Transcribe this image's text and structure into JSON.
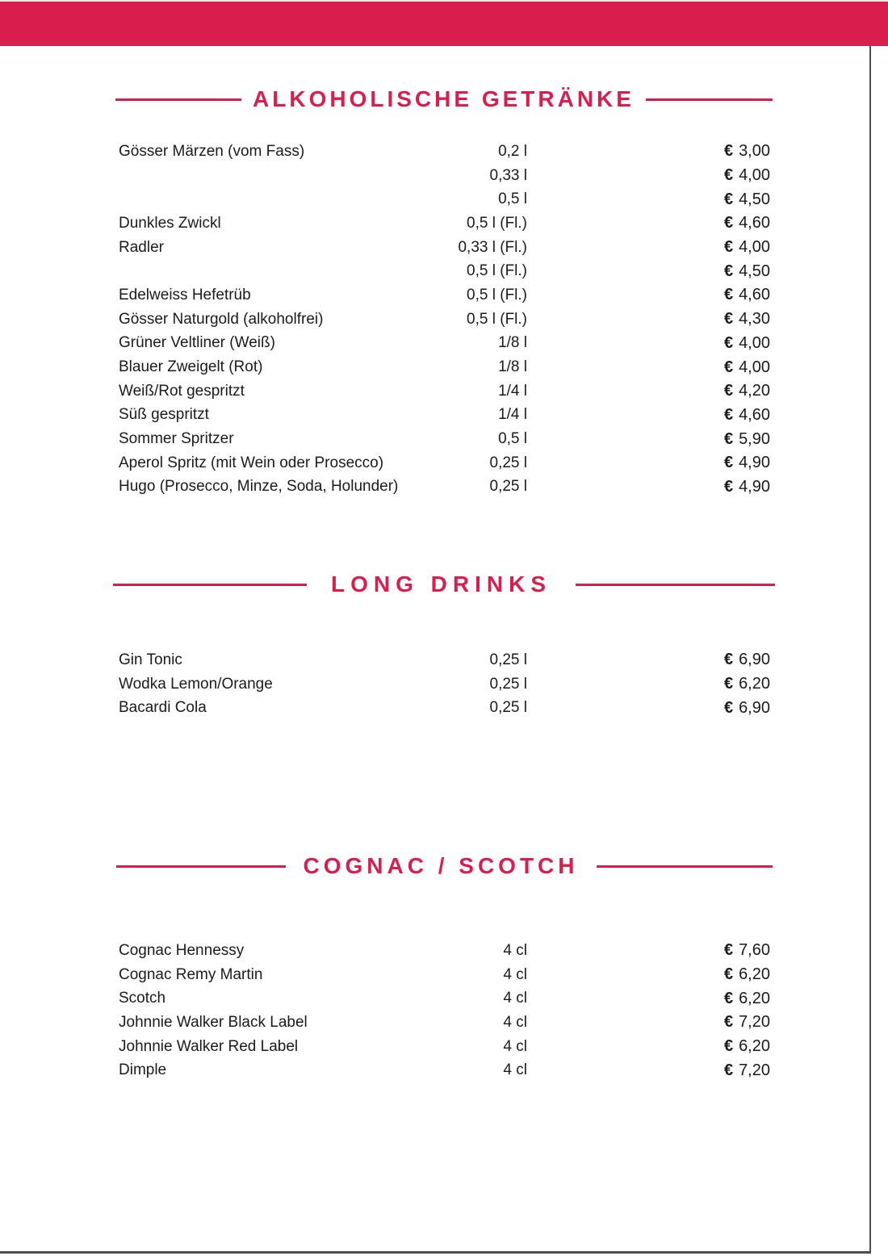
{
  "page": {
    "accent_color": "#D91E4E",
    "edge_line_color": "#4d4d4d",
    "background": "#ffffff",
    "currency": "€"
  },
  "sections": [
    {
      "title": "ALKOHOLISCHE GETRÄNKE",
      "items": [
        {
          "name": "Gösser Märzen (vom Fass)",
          "size": "0,2 l",
          "price": "3,00"
        },
        {
          "name": "",
          "size": "0,33 l",
          "price": "4,00"
        },
        {
          "name": "",
          "size": "0,5 l",
          "price": "4,50"
        },
        {
          "name": "Dunkles Zwickl",
          "size": "0,5 l (Fl.)",
          "price": "4,60"
        },
        {
          "name": "Radler",
          "size": "0,33 l (Fl.)",
          "price": "4,00"
        },
        {
          "name": "",
          "size": "0,5 l (Fl.)",
          "price": "4,50"
        },
        {
          "name": "Edelweiss Hefetrüb",
          "size": "0,5 l (Fl.)",
          "price": "4,60"
        },
        {
          "name": "Gösser Naturgold (alkoholfrei)",
          "size": "0,5 l (Fl.)",
          "price": "4,30"
        },
        {
          "name": "Grüner Veltliner (Weiß)",
          "size": "1/8 l",
          "price": "4,00"
        },
        {
          "name": "Blauer Zweigelt (Rot)",
          "size": "1/8 l",
          "price": "4,00"
        },
        {
          "name": "Weiß/Rot gespritzt",
          "size": "1/4 l",
          "price": "4,20"
        },
        {
          "name": "Süß gespritzt",
          "size": "1/4 l",
          "price": "4,60"
        },
        {
          "name": "Sommer Spritzer",
          "size": "0,5 l",
          "price": "5,90"
        },
        {
          "name": "Aperol Spritz (mit Wein oder Prosecco)",
          "size": "0,25 l",
          "price": "4,90"
        },
        {
          "name": "Hugo (Prosecco, Minze, Soda, Holunder)",
          "size": "0,25 l",
          "price": "4,90"
        }
      ]
    },
    {
      "title": "LONG DRINKS",
      "items": [
        {
          "name": "Gin Tonic",
          "size": "0,25 l",
          "price": "6,90"
        },
        {
          "name": "Wodka Lemon/Orange",
          "size": "0,25 l",
          "price": "6,20"
        },
        {
          "name": "Bacardi Cola",
          "size": "0,25 l",
          "price": "6,90"
        }
      ]
    },
    {
      "title": "COGNAC / SCOTCH",
      "items": [
        {
          "name": "Cognac Hennessy",
          "size": "4 cl",
          "price": "7,60"
        },
        {
          "name": "Cognac Remy Martin",
          "size": "4 cl",
          "price": "6,20"
        },
        {
          "name": "Scotch",
          "size": "4 cl",
          "price": "6,20"
        },
        {
          "name": "Johnnie Walker Black Label",
          "size": "4 cl",
          "price": "7,20"
        },
        {
          "name": "Johnnie Walker Red Label",
          "size": "4 cl",
          "price": "6,20"
        },
        {
          "name": "Dimple",
          "size": "4 cl",
          "price": "7,20"
        }
      ]
    }
  ]
}
